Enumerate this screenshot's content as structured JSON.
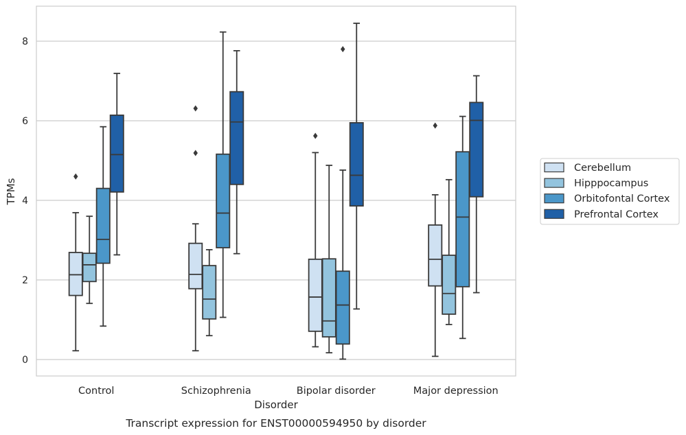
{
  "chart_data": {
    "type": "box",
    "caption": "Transcript expression for ENST00000594950 by disorder",
    "xlabel": "Disorder",
    "ylabel": "TPMs",
    "ylim": [
      -0.4,
      8.8
    ],
    "yticks": [
      0,
      2,
      4,
      6,
      8
    ],
    "grid": true,
    "legend_position": "right",
    "categories": [
      "Control",
      "Schizophrenia",
      "Bipolar disorder",
      "Major depression"
    ],
    "series": [
      {
        "name": "Cerebellum",
        "color": "#cfe1f2",
        "boxes": [
          {
            "whisker_low": 0.22,
            "q1": 1.61,
            "median": 2.13,
            "q3": 2.69,
            "whisker_high": 3.69,
            "outliers": [
              4.6
            ]
          },
          {
            "whisker_low": 0.22,
            "q1": 1.78,
            "median": 2.14,
            "q3": 2.92,
            "whisker_high": 3.41,
            "outliers": [
              5.19,
              6.31
            ]
          },
          {
            "whisker_low": 0.32,
            "q1": 0.71,
            "median": 1.57,
            "q3": 2.52,
            "whisker_high": 5.2,
            "outliers": [
              5.62
            ]
          },
          {
            "whisker_low": 0.08,
            "q1": 1.85,
            "median": 2.52,
            "q3": 3.38,
            "whisker_high": 4.14,
            "outliers": [
              5.88
            ]
          }
        ]
      },
      {
        "name": "Hipppocampus",
        "color": "#93c4de",
        "boxes": [
          {
            "whisker_low": 1.41,
            "q1": 1.96,
            "median": 2.38,
            "q3": 2.67,
            "whisker_high": 3.6,
            "outliers": []
          },
          {
            "whisker_low": 0.6,
            "q1": 1.02,
            "median": 1.52,
            "q3": 2.36,
            "whisker_high": 2.76,
            "outliers": []
          },
          {
            "whisker_low": 0.17,
            "q1": 0.57,
            "median": 0.97,
            "q3": 2.53,
            "whisker_high": 4.88,
            "outliers": []
          },
          {
            "whisker_low": 0.88,
            "q1": 1.14,
            "median": 1.66,
            "q3": 2.62,
            "whisker_high": 4.52,
            "outliers": []
          }
        ]
      },
      {
        "name": "Orbitofontal Cortex",
        "color": "#4b97c9",
        "boxes": [
          {
            "whisker_low": 0.84,
            "q1": 2.42,
            "median": 3.02,
            "q3": 4.3,
            "whisker_high": 5.85,
            "outliers": []
          },
          {
            "whisker_low": 1.06,
            "q1": 2.81,
            "median": 3.68,
            "q3": 5.16,
            "whisker_high": 8.23,
            "outliers": []
          },
          {
            "whisker_low": 0.01,
            "q1": 0.39,
            "median": 1.37,
            "q3": 2.22,
            "whisker_high": 4.76,
            "outliers": [
              7.8
            ]
          },
          {
            "whisker_low": 0.53,
            "q1": 1.83,
            "median": 3.58,
            "q3": 5.22,
            "whisker_high": 6.11,
            "outliers": []
          }
        ]
      },
      {
        "name": "Prefrontal Cortex",
        "color": "#2060a7",
        "boxes": [
          {
            "whisker_low": 2.63,
            "q1": 4.21,
            "median": 5.15,
            "q3": 6.14,
            "whisker_high": 7.19,
            "outliers": []
          },
          {
            "whisker_low": 2.66,
            "q1": 4.4,
            "median": 5.97,
            "q3": 6.73,
            "whisker_high": 7.76,
            "outliers": []
          },
          {
            "whisker_low": 1.27,
            "q1": 3.86,
            "median": 4.63,
            "q3": 5.95,
            "whisker_high": 8.45,
            "outliers": []
          },
          {
            "whisker_low": 1.68,
            "q1": 4.09,
            "median": 6.01,
            "q3": 6.46,
            "whisker_high": 7.13,
            "outliers": []
          }
        ]
      }
    ]
  }
}
